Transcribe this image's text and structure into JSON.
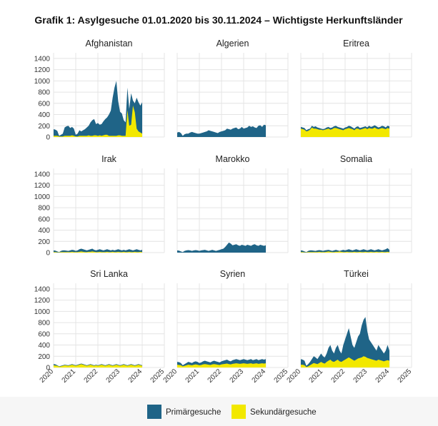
{
  "title": "Grafik 1: Asylgesuche 01.01.2020 bis 30.11.2024 – Wichtigste Herkunftsländer",
  "colors": {
    "primary": "#1f6487",
    "secondary": "#f2e800",
    "grid": "#e4e4e4",
    "panel": "#ffffff"
  },
  "legend": {
    "position": "bottom",
    "items": [
      "Primärgesuche",
      "Sekundärgesuche"
    ]
  },
  "chart_data": {
    "type": "area",
    "stacked": true,
    "facets": true,
    "x_range": [
      "2020-01",
      "2024-11"
    ],
    "x_ticks": [
      "2020",
      "2021",
      "2022",
      "2023",
      "2024",
      "2025"
    ],
    "ylim": [
      0,
      1500
    ],
    "y_ticks": [
      0,
      200,
      400,
      600,
      800,
      1000,
      1200,
      1400
    ],
    "grid": true,
    "series_names": [
      "Primärgesuche",
      "Sekundärgesuche"
    ],
    "panels": [
      {
        "name": "Afghanistan",
        "total": [
          140,
          130,
          110,
          20,
          40,
          60,
          170,
          190,
          200,
          160,
          180,
          150,
          40,
          60,
          120,
          100,
          120,
          140,
          170,
          200,
          260,
          300,
          320,
          230,
          250,
          220,
          230,
          280,
          320,
          350,
          400,
          470,
          700,
          880,
          1000,
          640,
          450,
          420,
          300,
          260,
          880,
          500,
          780,
          650,
          600,
          700,
          620,
          560,
          620
        ],
        "secondary": [
          20,
          20,
          20,
          10,
          10,
          10,
          20,
          20,
          20,
          20,
          30,
          20,
          10,
          10,
          20,
          20,
          20,
          20,
          20,
          30,
          20,
          20,
          30,
          30,
          20,
          30,
          20,
          30,
          40,
          40,
          20,
          20,
          20,
          20,
          20,
          30,
          30,
          20,
          20,
          20,
          480,
          200,
          220,
          560,
          440,
          150,
          100,
          80,
          60
        ]
      },
      {
        "name": "Algerien",
        "total": [
          80,
          90,
          70,
          20,
          50,
          60,
          60,
          80,
          90,
          80,
          70,
          60,
          60,
          70,
          80,
          90,
          100,
          120,
          110,
          100,
          90,
          80,
          70,
          90,
          100,
          110,
          120,
          150,
          140,
          130,
          150,
          160,
          170,
          140,
          150,
          180,
          150,
          160,
          170,
          200,
          180,
          190,
          170,
          160,
          200,
          210,
          180,
          220,
          210
        ],
        "secondary": [
          0,
          0,
          0,
          0,
          0,
          0,
          0,
          0,
          0,
          0,
          0,
          0,
          0,
          0,
          0,
          0,
          0,
          0,
          0,
          0,
          0,
          0,
          0,
          0,
          0,
          0,
          0,
          0,
          0,
          0,
          0,
          0,
          0,
          0,
          0,
          0,
          0,
          0,
          0,
          0,
          0,
          0,
          0,
          0,
          0,
          0,
          0,
          0,
          0
        ]
      },
      {
        "name": "Eritrea",
        "total": [
          180,
          170,
          160,
          120,
          140,
          150,
          200,
          180,
          190,
          170,
          160,
          150,
          140,
          150,
          170,
          180,
          160,
          170,
          190,
          200,
          180,
          170,
          160,
          150,
          170,
          180,
          200,
          190,
          170,
          150,
          180,
          190,
          160,
          170,
          180,
          190,
          170,
          200,
          180,
          190,
          210,
          190,
          170,
          180,
          200,
          190,
          170,
          200,
          190
        ],
        "secondary": [
          150,
          140,
          130,
          100,
          110,
          130,
          170,
          150,
          150,
          140,
          130,
          130,
          120,
          130,
          140,
          150,
          130,
          140,
          160,
          160,
          150,
          140,
          130,
          120,
          140,
          150,
          160,
          150,
          140,
          120,
          150,
          150,
          130,
          140,
          150,
          160,
          140,
          160,
          150,
          150,
          170,
          150,
          140,
          150,
          160,
          150,
          140,
          160,
          150
        ]
      },
      {
        "name": "Irak",
        "total": [
          40,
          35,
          20,
          10,
          30,
          40,
          40,
          35,
          30,
          40,
          50,
          45,
          30,
          40,
          60,
          70,
          60,
          50,
          40,
          50,
          60,
          70,
          50,
          40,
          50,
          60,
          50,
          40,
          50,
          60,
          50,
          40,
          50,
          40,
          50,
          60,
          50,
          40,
          50,
          40,
          50,
          60,
          50,
          40,
          50,
          60,
          50,
          40,
          50
        ],
        "secondary": [
          10,
          10,
          5,
          5,
          10,
          10,
          10,
          10,
          10,
          10,
          15,
          10,
          10,
          10,
          15,
          20,
          15,
          10,
          10,
          15,
          15,
          20,
          15,
          10,
          10,
          15,
          10,
          10,
          10,
          15,
          10,
          10,
          15,
          10,
          10,
          15,
          10,
          10,
          15,
          10,
          10,
          15,
          10,
          10,
          15,
          10,
          10,
          15,
          10
        ]
      },
      {
        "name": "Marokko",
        "total": [
          40,
          35,
          20,
          10,
          30,
          40,
          45,
          40,
          30,
          40,
          45,
          40,
          30,
          40,
          45,
          50,
          40,
          30,
          40,
          50,
          40,
          30,
          40,
          50,
          60,
          70,
          100,
          140,
          180,
          160,
          130,
          140,
          150,
          130,
          120,
          140,
          130,
          120,
          140,
          130,
          120,
          140,
          150,
          130,
          120,
          140,
          130,
          120,
          130
        ],
        "secondary": [
          0,
          0,
          0,
          0,
          0,
          0,
          0,
          0,
          0,
          0,
          0,
          0,
          0,
          0,
          0,
          0,
          0,
          0,
          0,
          0,
          0,
          0,
          0,
          0,
          0,
          0,
          0,
          0,
          0,
          0,
          0,
          0,
          0,
          0,
          0,
          0,
          0,
          0,
          0,
          0,
          0,
          0,
          0,
          0,
          0,
          0,
          0,
          0,
          0
        ]
      },
      {
        "name": "Somalia",
        "total": [
          40,
          35,
          20,
          10,
          30,
          40,
          40,
          35,
          30,
          40,
          45,
          40,
          30,
          40,
          45,
          50,
          40,
          30,
          40,
          50,
          40,
          30,
          40,
          50,
          40,
          50,
          60,
          50,
          40,
          50,
          60,
          50,
          40,
          50,
          60,
          50,
          40,
          50,
          60,
          50,
          40,
          50,
          60,
          50,
          40,
          50,
          60,
          80,
          50
        ],
        "secondary": [
          10,
          10,
          5,
          5,
          10,
          10,
          10,
          10,
          10,
          10,
          15,
          10,
          10,
          10,
          15,
          20,
          15,
          10,
          10,
          15,
          15,
          20,
          15,
          10,
          10,
          15,
          10,
          10,
          10,
          15,
          10,
          10,
          15,
          10,
          10,
          15,
          10,
          10,
          15,
          10,
          10,
          15,
          10,
          10,
          15,
          10,
          10,
          15,
          10
        ]
      },
      {
        "name": "Sri Lanka",
        "total": [
          60,
          55,
          40,
          20,
          30,
          40,
          50,
          45,
          40,
          50,
          60,
          50,
          40,
          50,
          60,
          70,
          60,
          50,
          40,
          50,
          60,
          50,
          40,
          50,
          40,
          50,
          60,
          50,
          40,
          50,
          60,
          50,
          40,
          50,
          60,
          50,
          40,
          50,
          60,
          50,
          40,
          50,
          60,
          50,
          40,
          50,
          60,
          50,
          40
        ],
        "secondary": [
          40,
          35,
          30,
          15,
          20,
          30,
          40,
          35,
          30,
          40,
          50,
          40,
          30,
          40,
          50,
          60,
          50,
          40,
          30,
          40,
          50,
          40,
          30,
          40,
          30,
          40,
          50,
          40,
          30,
          40,
          50,
          40,
          30,
          40,
          50,
          40,
          30,
          40,
          50,
          40,
          30,
          40,
          50,
          40,
          30,
          40,
          50,
          40,
          30
        ]
      },
      {
        "name": "Syrien",
        "total": [
          100,
          95,
          80,
          40,
          60,
          80,
          100,
          90,
          80,
          100,
          110,
          100,
          80,
          90,
          110,
          120,
          110,
          100,
          90,
          110,
          120,
          110,
          100,
          90,
          110,
          120,
          130,
          140,
          120,
          110,
          130,
          140,
          150,
          140,
          130,
          140,
          150,
          140,
          130,
          140,
          150,
          130,
          140,
          150,
          130,
          140,
          150,
          140,
          150
        ],
        "secondary": [
          50,
          45,
          40,
          20,
          30,
          40,
          50,
          45,
          40,
          50,
          55,
          50,
          40,
          45,
          55,
          60,
          55,
          50,
          45,
          55,
          60,
          55,
          50,
          45,
          55,
          60,
          65,
          70,
          60,
          55,
          65,
          70,
          75,
          70,
          65,
          70,
          75,
          70,
          65,
          70,
          75,
          65,
          70,
          75,
          65,
          70,
          75,
          70,
          75
        ]
      },
      {
        "name": "Türkei",
        "total": [
          150,
          140,
          120,
          30,
          60,
          100,
          150,
          200,
          180,
          150,
          200,
          250,
          200,
          180,
          250,
          350,
          400,
          300,
          250,
          350,
          400,
          300,
          250,
          400,
          500,
          600,
          700,
          550,
          400,
          350,
          450,
          550,
          600,
          750,
          850,
          900,
          650,
          500,
          450,
          400,
          350,
          300,
          400,
          350,
          300,
          250,
          300,
          400,
          300
        ],
        "secondary": [
          50,
          50,
          40,
          10,
          20,
          40,
          60,
          80,
          70,
          60,
          80,
          100,
          80,
          70,
          100,
          120,
          140,
          110,
          100,
          120,
          140,
          110,
          100,
          120,
          140,
          160,
          180,
          160,
          140,
          120,
          140,
          160,
          170,
          180,
          200,
          190,
          170,
          160,
          150,
          140,
          130,
          120,
          140,
          130,
          120,
          110,
          120,
          130,
          120
        ]
      }
    ]
  }
}
